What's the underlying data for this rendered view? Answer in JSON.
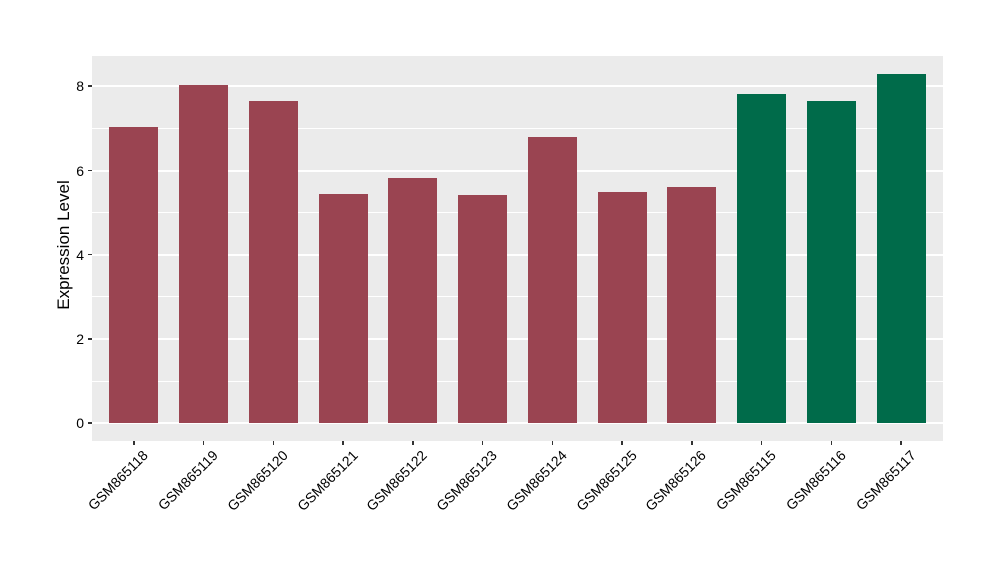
{
  "chart_data": {
    "type": "bar",
    "title": "",
    "xlabel": "",
    "ylabel": "Expression Level",
    "categories": [
      "GSM865118",
      "GSM865119",
      "GSM865120",
      "GSM865121",
      "GSM865122",
      "GSM865123",
      "GSM865124",
      "GSM865125",
      "GSM865126",
      "GSM865115",
      "GSM865116",
      "GSM865117"
    ],
    "values": [
      7.03,
      8.04,
      7.65,
      5.44,
      5.83,
      5.42,
      6.79,
      5.48,
      5.6,
      7.81,
      7.66,
      8.3
    ],
    "bar_colors": [
      "#9A4451",
      "#9A4451",
      "#9A4451",
      "#9A4451",
      "#9A4451",
      "#9A4451",
      "#9A4451",
      "#9A4451",
      "#9A4451",
      "#006B4A",
      "#006B4A",
      "#006B4A"
    ],
    "group_colors": {
      "maroon_group": "#9A4451",
      "green_group": "#006B4A"
    },
    "yticks": [
      "0",
      "2",
      "4",
      "6",
      "8"
    ],
    "ytick_values": [
      0,
      2,
      4,
      6,
      8
    ],
    "minor_gridline_values": [
      1,
      3,
      5,
      7
    ],
    "ylim": [
      -0.42,
      8.72
    ],
    "x_range": [
      0.4,
      12.6
    ],
    "bar_width_fraction": 0.7,
    "bar_baseline": 0,
    "grid": "on",
    "legend": "none",
    "panel_bg": "#EBEBEB",
    "grid_color": "#FFFFFF",
    "tick_color": "#333333",
    "text_color": "#000000",
    "figure_bg": "#FFFFFF"
  }
}
